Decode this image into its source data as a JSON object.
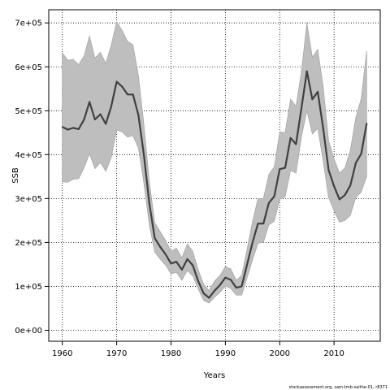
{
  "chart_data": {
    "type": "line",
    "title": "",
    "xlabel": "Years",
    "ylabel": "SSB",
    "xlim": [
      1957.5,
      2018.5
    ],
    "ylim": [
      -25000,
      730000
    ],
    "xticks": [
      1960,
      1970,
      1980,
      1990,
      2000,
      2010
    ],
    "yticks": [
      0,
      100000,
      200000,
      300000,
      400000,
      500000,
      600000,
      700000
    ],
    "ytick_labels": [
      "0e+00",
      "1e+05",
      "2e+05",
      "3e+05",
      "4e+05",
      "5e+05",
      "6e+05",
      "7e+05"
    ],
    "xtick_labels": [
      "1960",
      "1970",
      "1980",
      "1990",
      "2000",
      "2010"
    ],
    "grid": true,
    "caption": "stockassessment.org,  sam-tmb-saithe-01,  r8371",
    "colors": {
      "line": "#404040",
      "band": "#bebebe",
      "band_edge": "#9a9a9a",
      "grid": "#000000"
    },
    "x": [
      1960,
      1961,
      1962,
      1963,
      1964,
      1965,
      1966,
      1967,
      1968,
      1969,
      1970,
      1971,
      1972,
      1973,
      1974,
      1975,
      1976,
      1977,
      1978,
      1979,
      1980,
      1981,
      1982,
      1983,
      1984,
      1985,
      1986,
      1987,
      1988,
      1989,
      1990,
      1991,
      1992,
      1993,
      1994,
      1995,
      1996,
      1997,
      1998,
      1999,
      2000,
      2001,
      2002,
      2003,
      2004,
      2005,
      2006,
      2007,
      2008,
      2009,
      2010,
      2011,
      2012,
      2013,
      2014,
      2015,
      2016
    ],
    "series": [
      {
        "values": [
          463000,
          457000,
          461000,
          458000,
          480000,
          520000,
          480000,
          492000,
          470000,
          510000,
          566000,
          555000,
          537000,
          537000,
          490000,
          400000,
          290000,
          210000,
          190000,
          173000,
          152000,
          156000,
          138000,
          162000,
          148000,
          112000,
          84000,
          74000,
          90000,
          103000,
          120000,
          115000,
          97000,
          100000,
          150000,
          200000,
          243000,
          243000,
          290000,
          305000,
          367000,
          370000,
          438000,
          424000,
          506000,
          590000,
          526000,
          543000,
          460000,
          365000,
          328000,
          298000,
          308000,
          330000,
          381000,
          402000,
          471000
        ]
      }
    ],
    "band": {
      "lower": [
        338000,
        337000,
        344000,
        345000,
        370000,
        402000,
        368000,
        382000,
        362000,
        393000,
        456000,
        452000,
        440000,
        443000,
        415000,
        335000,
        240000,
        178000,
        162000,
        148000,
        128000,
        132000,
        114000,
        136000,
        124000,
        94000,
        68000,
        62000,
        75000,
        86000,
        101000,
        95000,
        80000,
        80000,
        120000,
        160000,
        198000,
        200000,
        240000,
        248000,
        298000,
        304000,
        364000,
        358000,
        440000,
        500000,
        447000,
        460000,
        385000,
        302000,
        272000,
        246000,
        250000,
        262000,
        302000,
        315000,
        350000
      ],
      "upper": [
        632000,
        615000,
        617000,
        605000,
        625000,
        670000,
        620000,
        633000,
        608000,
        650000,
        703000,
        683000,
        658000,
        650000,
        580000,
        470000,
        340000,
        245000,
        225000,
        205000,
        180000,
        187000,
        165000,
        197000,
        180000,
        138000,
        105000,
        90000,
        112000,
        125000,
        145000,
        140000,
        114000,
        125000,
        185000,
        248000,
        300000,
        300000,
        355000,
        372000,
        452000,
        450000,
        527000,
        510000,
        590000,
        700000,
        622000,
        640000,
        555000,
        432000,
        390000,
        358000,
        370000,
        410000,
        485000,
        528000,
        636000
      ]
    }
  }
}
